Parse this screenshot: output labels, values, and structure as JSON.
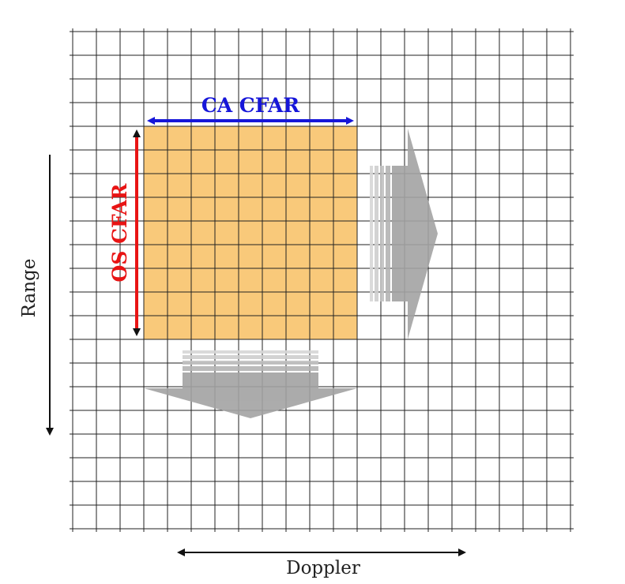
{
  "diagram": {
    "grid": {
      "columns": 21,
      "rows": 21,
      "line_color": "#222222"
    },
    "window": {
      "fill": "#f9c97a",
      "col_start": 3,
      "col_end": 12,
      "row_start": 4,
      "row_end": 13
    },
    "ca_cfar": {
      "label": "CA CFAR",
      "color": "#1616d9"
    },
    "os_cfar": {
      "label": "OS CFAR",
      "color": "#e81414"
    },
    "range_axis": {
      "label": "Range",
      "color": "#111111"
    },
    "doppler_axis": {
      "label": "Doppler",
      "color": "#111111"
    },
    "slide_arrows": {
      "color": "#a0a0a0",
      "directions": [
        "right",
        "down"
      ]
    }
  }
}
